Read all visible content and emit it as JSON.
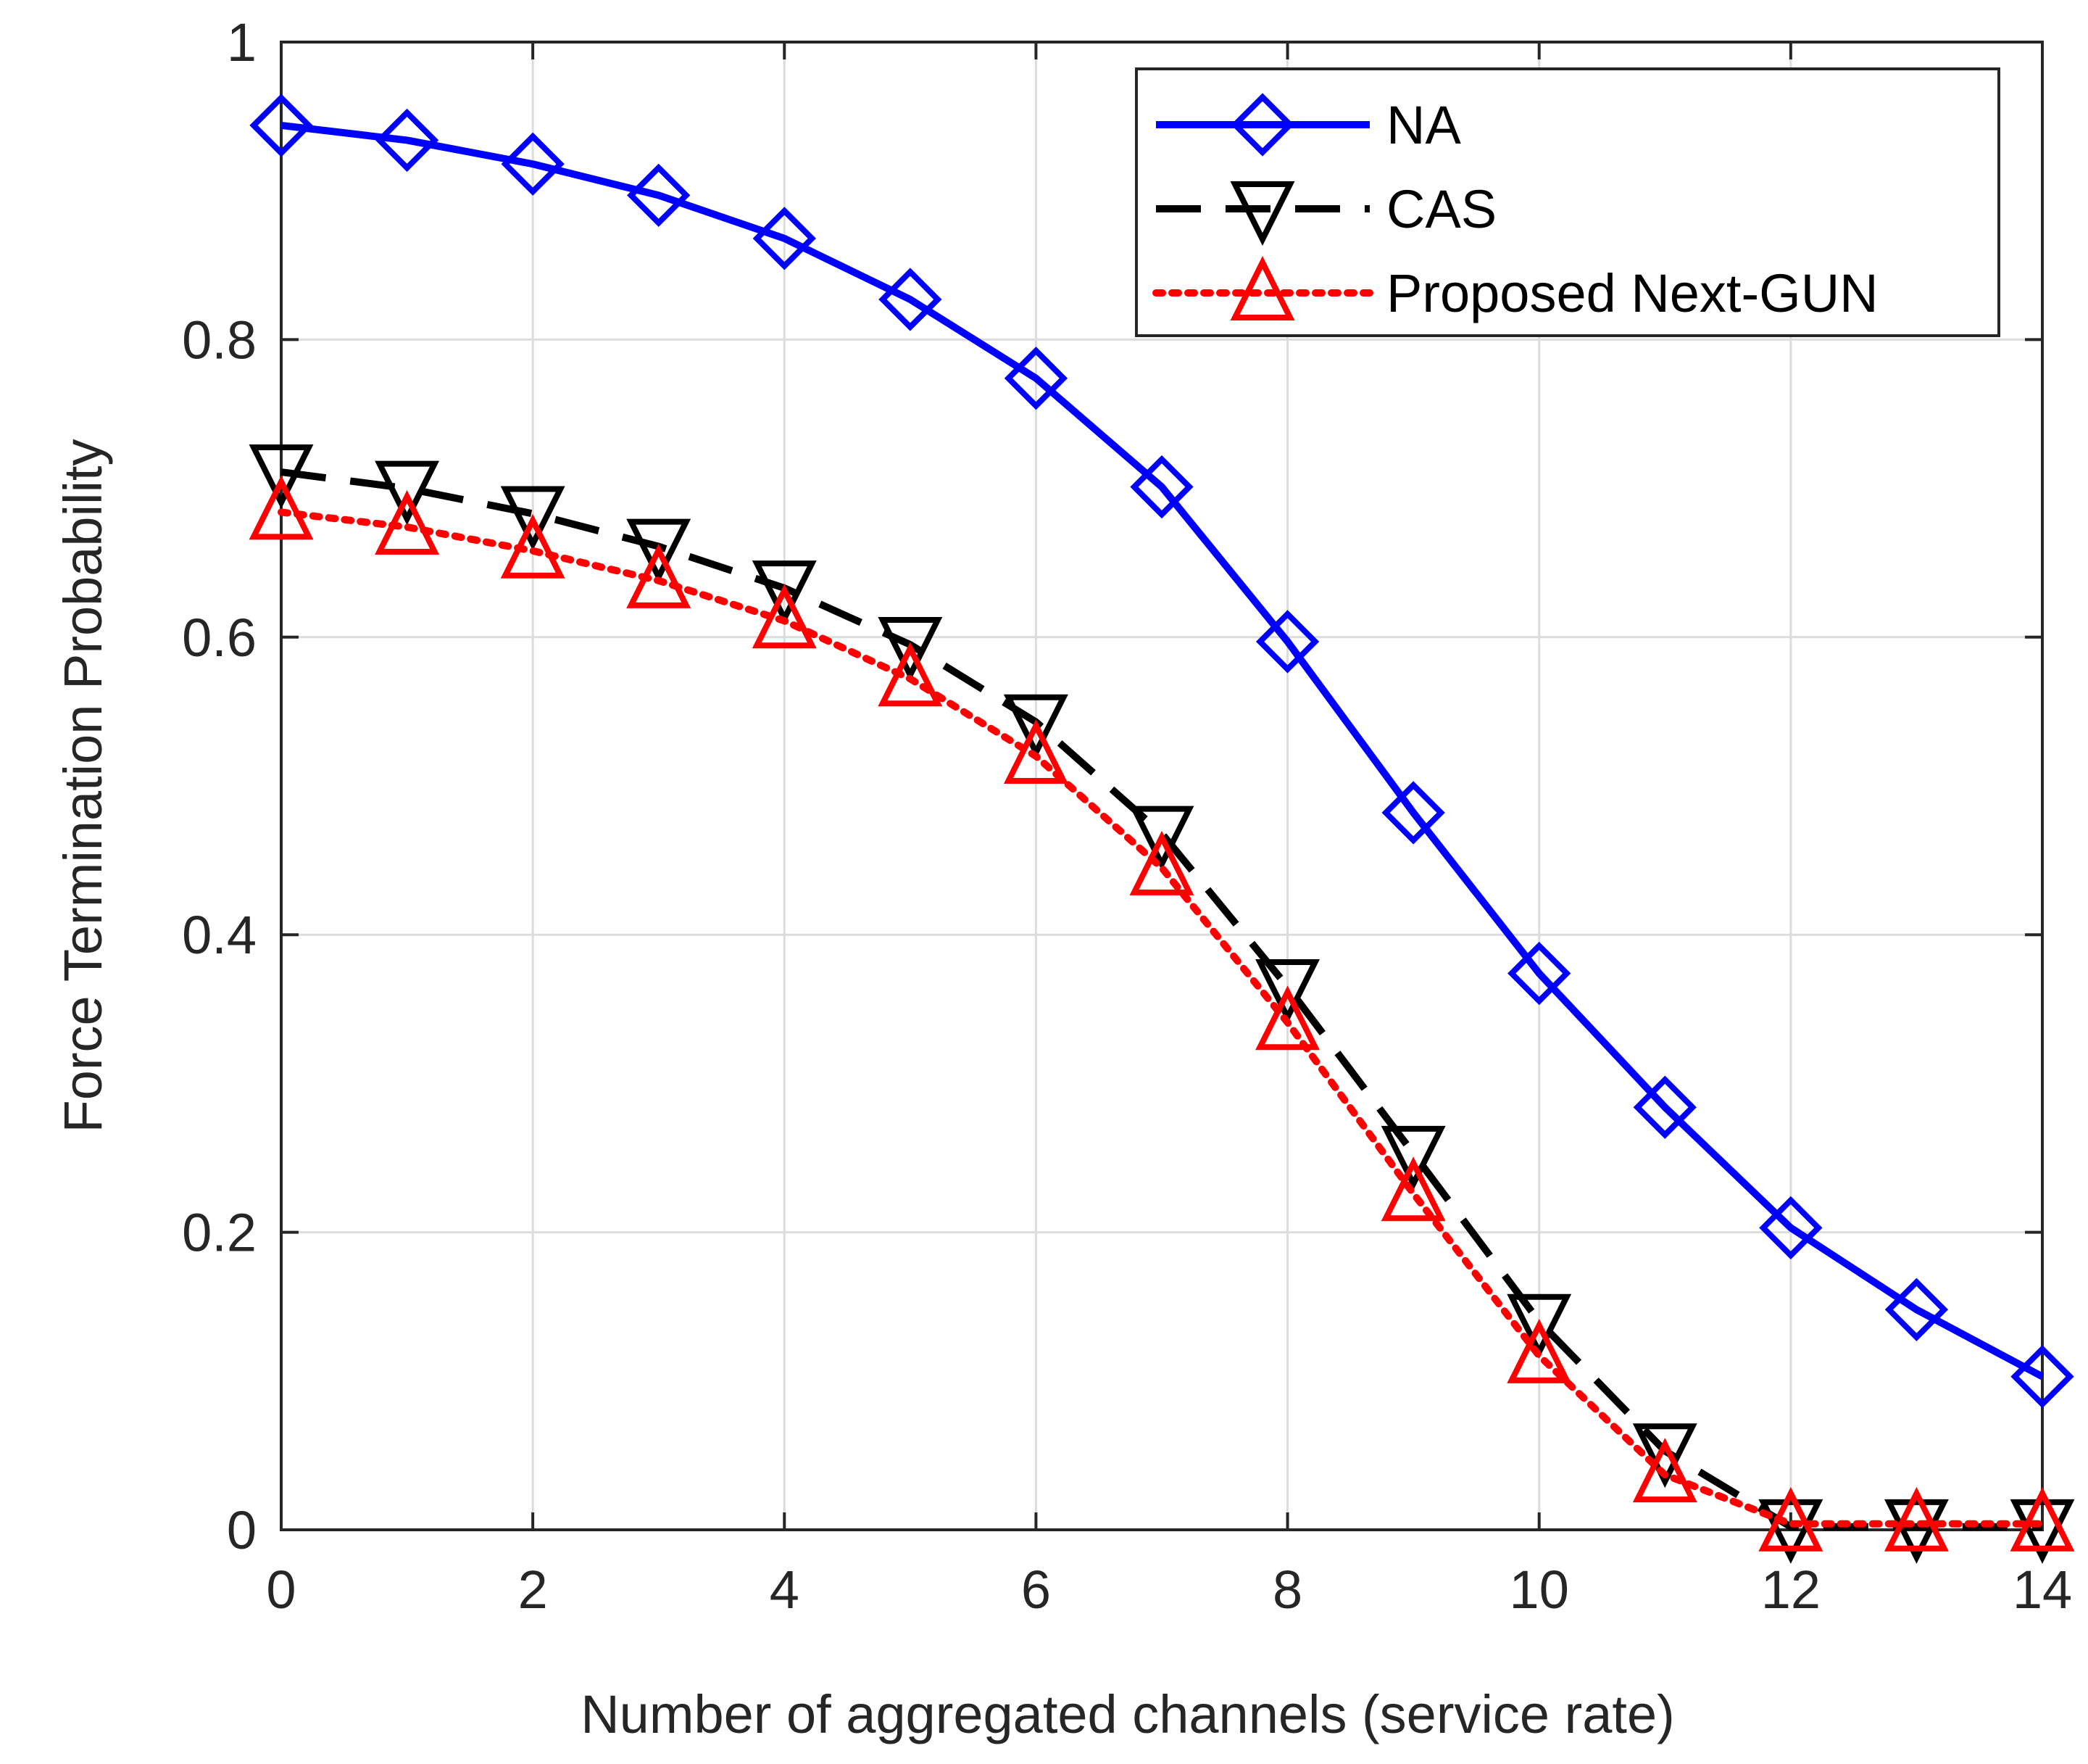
{
  "chart_data": {
    "type": "line",
    "title": "",
    "xlabel": "Number of aggregated channels (service rate)",
    "ylabel": "Force Termination Probability",
    "xlim": [
      0,
      14
    ],
    "ylim": [
      0,
      1
    ],
    "xticks": [
      0,
      2,
      4,
      6,
      8,
      10,
      12,
      14
    ],
    "xtick_labels": [
      "0",
      "2",
      "4",
      "6",
      "8",
      "10",
      "12",
      "14"
    ],
    "yticks": [
      0,
      0.2,
      0.4,
      0.6,
      0.8,
      1
    ],
    "ytick_labels": [
      "0",
      "0.2",
      "0.4",
      "0.6",
      "0.8",
      "1"
    ],
    "grid": true,
    "legend_position": "top-right",
    "x": [
      0,
      1,
      2,
      3,
      4,
      5,
      6,
      7,
      8,
      9,
      10,
      11,
      12,
      13,
      14
    ],
    "series": [
      {
        "name": "NA",
        "color": "#0000ff",
        "line_style": "solid",
        "marker": "diamond",
        "values": [
          0.944,
          0.934,
          0.918,
          0.897,
          0.868,
          0.827,
          0.774,
          0.701,
          0.597,
          0.482,
          0.374,
          0.284,
          0.203,
          0.148,
          0.103
        ]
      },
      {
        "name": "CAS",
        "color": "#000000",
        "line_style": "dashed",
        "marker": "triangle-down",
        "values": [
          0.711,
          0.7,
          0.683,
          0.661,
          0.633,
          0.595,
          0.543,
          0.468,
          0.365,
          0.253,
          0.14,
          0.053,
          0.002,
          0.002,
          0.002
        ]
      },
      {
        "name": "Proposed Next-GUN",
        "color": "#ff0000",
        "line_style": "dotted",
        "marker": "triangle-up",
        "values": [
          0.684,
          0.674,
          0.658,
          0.638,
          0.611,
          0.572,
          0.52,
          0.445,
          0.341,
          0.226,
          0.117,
          0.037,
          0.004,
          0.004,
          0.004
        ]
      }
    ]
  }
}
